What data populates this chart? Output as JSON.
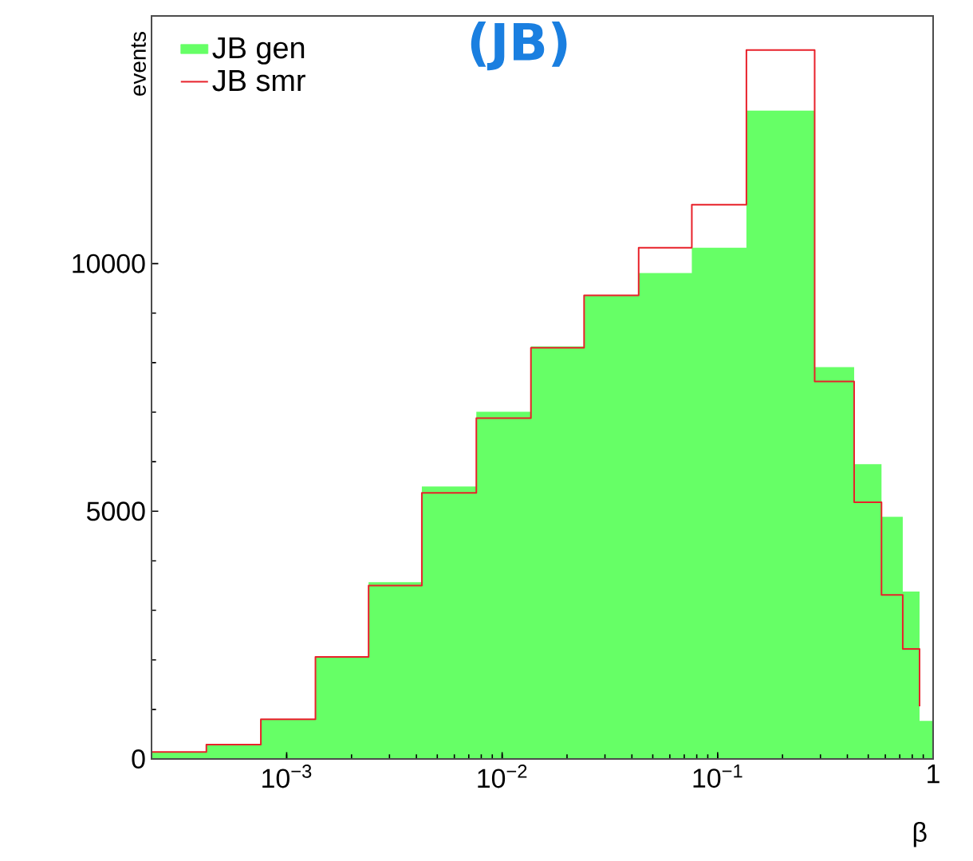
{
  "chart_data": {
    "type": "histogram",
    "xlabel": "β",
    "ylabel": "events",
    "annotations": [
      "(JB)"
    ],
    "bins": [
      0.000236,
      0.000424,
      0.000759,
      0.00136,
      0.0024,
      0.00424,
      0.00759,
      0.0136,
      0.024,
      0.043,
      0.0759,
      0.136,
      0.282,
      0.43,
      0.576,
      0.723,
      0.865,
      1.0
    ],
    "series": [
      {
        "name": "JB gen",
        "color": "#66ff66",
        "values": [
          130,
          280,
          800,
          2060,
          3570,
          5500,
          7010,
          8330,
          9360,
          9810,
          10320,
          13090,
          7910,
          5950,
          4890,
          3380,
          770
        ]
      },
      {
        "name": "JB smr",
        "type": "step",
        "color": "#e8212a",
        "x": [
          0.000236,
          0.000424,
          0.000759,
          0.00136,
          0.0024,
          0.00424,
          0.00759,
          0.0136,
          0.024,
          0.043,
          0.0759,
          0.136,
          0.282,
          0.43,
          0.576,
          0.723,
          0.865
        ],
        "values": [
          140,
          290,
          800,
          2060,
          3500,
          5370,
          6880,
          8300,
          9360,
          10320,
          11190,
          14310,
          7620,
          5180,
          3310,
          2220,
          1060
        ]
      }
    ],
    "log": "x",
    "xlim": [
      0.000236,
      1.0
    ],
    "ylim": [
      0,
      15000
    ],
    "xticks": [
      {
        "value": 0.001,
        "label": "10$^{−3}$"
      },
      {
        "value": 0.01,
        "label": "10$^{−2}$"
      },
      {
        "value": 0.1,
        "label": "10$^{−1}$"
      },
      1
    ],
    "yticks": [
      0,
      5000,
      10000
    ],
    "legend": "top left"
  }
}
